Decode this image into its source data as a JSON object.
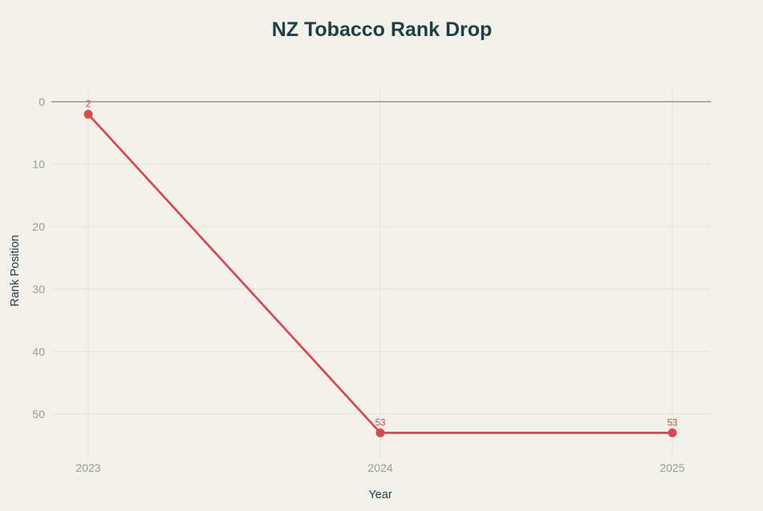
{
  "page": {
    "background_color": "#f2f1ea"
  },
  "chart_data": {
    "type": "line",
    "title": "NZ Tobacco Rank Drop",
    "xlabel": "Year",
    "ylabel": "Rank Position",
    "categories": [
      "2023",
      "2024",
      "2025"
    ],
    "values": [
      2,
      53,
      53
    ],
    "point_labels": [
      "2",
      "53",
      "53"
    ],
    "y_ticks": [
      0,
      10,
      20,
      30,
      40,
      50
    ],
    "y_axis": {
      "inverted": true,
      "min": 0,
      "max": 57.2
    },
    "x_axis": {
      "range": [
        "2023",
        "2025"
      ]
    },
    "grid": true,
    "legend": "none",
    "colors": {
      "line": "#d84850",
      "point": "#d84850",
      "point_label": "#d84850",
      "title": "#1e3d44",
      "axis_label": "#1e3d44",
      "tick_label": "#9a9a98",
      "gridline": "#e2e1d9",
      "zero_line": "#848484",
      "background": "#f2f1ea"
    }
  }
}
